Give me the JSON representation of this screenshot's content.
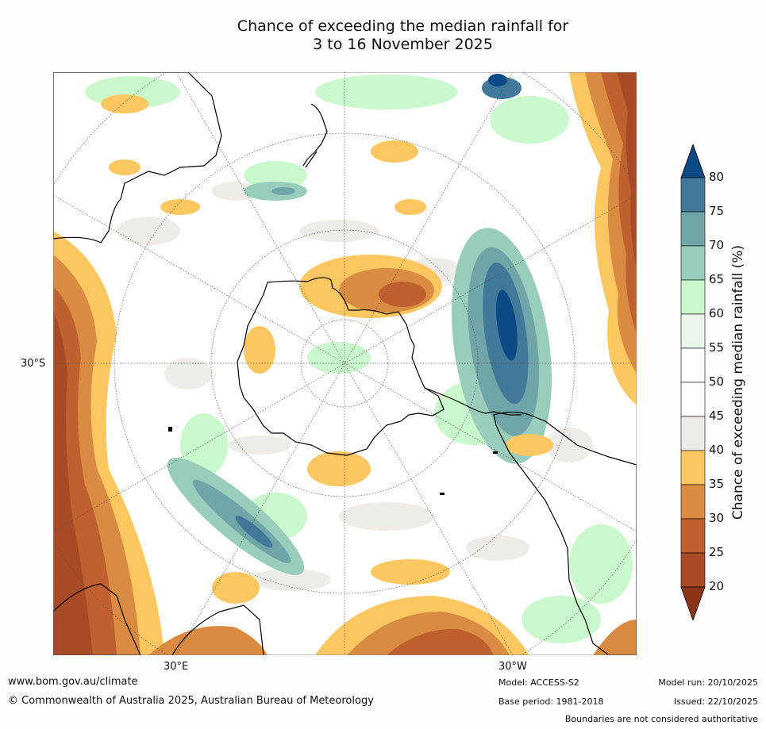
{
  "title_line1": "Chance of exceeding the median rainfall for",
  "title_line2": "3 to 16 November 2025",
  "lat_label": "30°S",
  "lon_labels": [
    "30°E",
    "30°W"
  ],
  "colorbar": {
    "label": "Chance of exceeding median rainfall (%)",
    "ticks": [
      "80",
      "75",
      "70",
      "65",
      "60",
      "55",
      "50",
      "45",
      "40",
      "35",
      "30",
      "25",
      "20"
    ],
    "colors_top_to_bottom": [
      "#0c4a86",
      "#42799a",
      "#6fa5a8",
      "#99cdbb",
      "#c9f8cc",
      "#eaf4ea",
      "#ffffff",
      "#ffffff",
      "#ecebe7",
      "#fcc761",
      "#d98c41",
      "#c0602f",
      "#a94a26",
      "#8c3418"
    ]
  },
  "footer": {
    "url": "www.bom.gov.au/climate",
    "copyright": "© Commonwealth of Australia 2025, Australian Bureau of Meteorology",
    "model": "Model: ACCESS-S2",
    "base_period": "Base period: 1981-2018",
    "model_run": "Model run: 20/10/2025",
    "issued": "Issued: 22/10/2025",
    "disclaimer": "Boundaries are not considered authoritative"
  }
}
